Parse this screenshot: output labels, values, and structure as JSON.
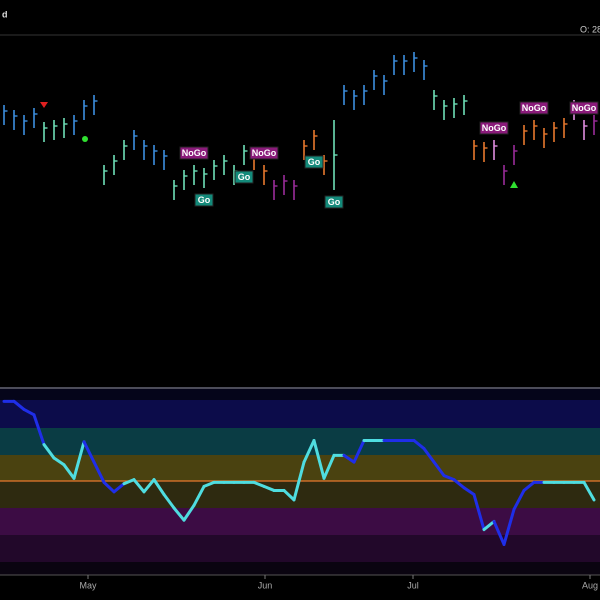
{
  "header": {
    "left": "d",
    "right": "O: 28"
  },
  "chart_data": [
    {
      "type": "ohlc",
      "xlim": [
        -0.4,
        59.6
      ],
      "ylim": [
        0,
        350
      ],
      "high": [
        280,
        275,
        270,
        277,
        263,
        265,
        267,
        270,
        285,
        290,
        220,
        230,
        245,
        255,
        245,
        240,
        235,
        205,
        215,
        220,
        217,
        225,
        230,
        220,
        240,
        235,
        220,
        205,
        210,
        205,
        245,
        255,
        230,
        265,
        300,
        295,
        300,
        315,
        310,
        330,
        330,
        333,
        325,
        295,
        285,
        287,
        290,
        245,
        243,
        245,
        220,
        240,
        260,
        265,
        257,
        263,
        267,
        285,
        265,
        270
      ],
      "low": [
        260,
        255,
        250,
        257,
        243,
        245,
        247,
        250,
        265,
        270,
        200,
        210,
        225,
        235,
        225,
        220,
        215,
        185,
        195,
        200,
        197,
        205,
        210,
        200,
        220,
        215,
        200,
        185,
        190,
        185,
        225,
        235,
        210,
        195,
        280,
        275,
        280,
        295,
        290,
        310,
        310,
        313,
        305,
        275,
        265,
        267,
        270,
        225,
        223,
        225,
        200,
        220,
        240,
        245,
        237,
        243,
        247,
        265,
        245,
        250
      ],
      "close": [
        274,
        269,
        264,
        271,
        257,
        259,
        261,
        264,
        279,
        284,
        214,
        224,
        239,
        249,
        239,
        234,
        229,
        199,
        209,
        214,
        211,
        219,
        224,
        214,
        234,
        229,
        214,
        199,
        204,
        199,
        239,
        249,
        224,
        230,
        294,
        289,
        294,
        309,
        304,
        324,
        324,
        327,
        319,
        289,
        279,
        281,
        284,
        239,
        237,
        239,
        214,
        234,
        254,
        259,
        251,
        257,
        261,
        279,
        259,
        264
      ],
      "colors": [
        "#3d8fe0",
        "#3d8fe0",
        "#3d8fe0",
        "#3d8fe0",
        "#6ee0b8",
        "#6ee0b8",
        "#6ee0b8",
        "#3d8fe0",
        "#3d8fe0",
        "#3d8fe0",
        "#6ee0b8",
        "#6ee0b8",
        "#6ee0b8",
        "#3d8fe0",
        "#3d8fe0",
        "#3d8fe0",
        "#3d8fe0",
        "#6ee0b8",
        "#6ee0b8",
        "#6ee0b8",
        "#6ee0b8",
        "#6ee0b8",
        "#6ee0b8",
        "#6ee0b8",
        "#6ee0b8",
        "#e8782e",
        "#e8782e",
        "#9a2c9a",
        "#9a2c9a",
        "#9a2c9a",
        "#e8782e",
        "#e8782e",
        "#e8782e",
        "#6ee0b8",
        "#3d8fe0",
        "#3d8fe0",
        "#3d8fe0",
        "#3d8fe0",
        "#3d8fe0",
        "#3d8fe0",
        "#3d8fe0",
        "#3d8fe0",
        "#3d8fe0",
        "#6ee0b8",
        "#6ee0b8",
        "#6ee0b8",
        "#6ee0b8",
        "#e8782e",
        "#e8782e",
        "#e08ee0",
        "#9a2c9a",
        "#9a2c9a",
        "#e8782e",
        "#e8782e",
        "#e8782e",
        "#e8782e",
        "#e8782e",
        "#e08ee0",
        "#e08ee0",
        "#9a2c9a"
      ],
      "signals": [
        {
          "label": "NoGo",
          "bar": 19
        },
        {
          "label": "Go",
          "bar": 20
        },
        {
          "label": "Go",
          "bar": 24
        },
        {
          "label": "NoGo",
          "bar": 26
        },
        {
          "label": "Go",
          "bar": 31
        },
        {
          "label": "Go",
          "bar": 33
        },
        {
          "label": "NoGo",
          "bar": 49
        },
        {
          "label": "NoGo",
          "bar": 53
        },
        {
          "label": "NoGo",
          "bar": 58
        }
      ]
    },
    {
      "type": "line",
      "xlim": [
        -0.4,
        59.6
      ],
      "ylim": [
        -6,
        6
      ],
      "values": [
        5.9,
        5.9,
        5.3,
        4.9,
        2.7,
        1.7,
        1.2,
        0.2,
        2.9,
        1.4,
        -0.1,
        -0.8,
        -0.2,
        0.1,
        -0.8,
        0.1,
        -1.0,
        -2.0,
        -2.9,
        -1.8,
        -0.4,
        -0.1,
        -0.1,
        -0.1,
        -0.1,
        -0.1,
        -0.4,
        -0.7,
        -0.7,
        -1.4,
        1.4,
        3.0,
        0.2,
        1.9,
        1.9,
        1.4,
        3.0,
        3.0,
        3.0,
        3.0,
        3.0,
        3.0,
        2.4,
        1.4,
        0.4,
        0.1,
        -0.5,
        -1.0,
        -3.6,
        -3.0,
        -4.7,
        -2.1,
        -0.7,
        -0.1,
        -0.1,
        -0.1,
        -0.1,
        -0.1,
        -0.1,
        -1.4
      ],
      "colors": [
        "#1f2ee8",
        "#1f2ee8",
        "#1f2ee8",
        "#1f2ee8",
        "#4fdde0",
        "#4fdde0",
        "#4fdde0",
        "#4fdde0",
        "#1f2ee8",
        "#1f2ee8",
        "#1f2ee8",
        "#1f2ee8",
        "#4fdde0",
        "#4fdde0",
        "#4fdde0",
        "#4fdde0",
        "#4fdde0",
        "#4fdde0",
        "#4fdde0",
        "#4fdde0",
        "#4fdde0",
        "#4fdde0",
        "#4fdde0",
        "#4fdde0",
        "#4fdde0",
        "#4fdde0",
        "#4fdde0",
        "#4fdde0",
        "#4fdde0",
        "#4fdde0",
        "#4fdde0",
        "#4fdde0",
        "#4fdde0",
        "#4fdde0",
        "#1f2ee8",
        "#1f2ee8",
        "#4fdde0",
        "#4fdde0",
        "#1f2ee8",
        "#1f2ee8",
        "#1f2ee8",
        "#1f2ee8",
        "#1f2ee8",
        "#1f2ee8",
        "#1f2ee8",
        "#1f2ee8",
        "#1f2ee8",
        "#1f2ee8",
        "#4fdde0",
        "#1f2ee8",
        "#1f2ee8",
        "#1f2ee8",
        "#1f2ee8",
        "#1f2ee8",
        "#4fdde0",
        "#4fdde0",
        "#4fdde0",
        "#4fdde0",
        "#4fdde0",
        "#1f2ee8"
      ],
      "zero_line_color": "#e8782e",
      "xticks": [
        {
          "value": 8.4,
          "label": "May"
        },
        {
          "value": 26.1,
          "label": "Jun"
        },
        {
          "value": 40.9,
          "label": "Jul"
        },
        {
          "value": 58.6,
          "label": "Aug"
        }
      ]
    }
  ]
}
